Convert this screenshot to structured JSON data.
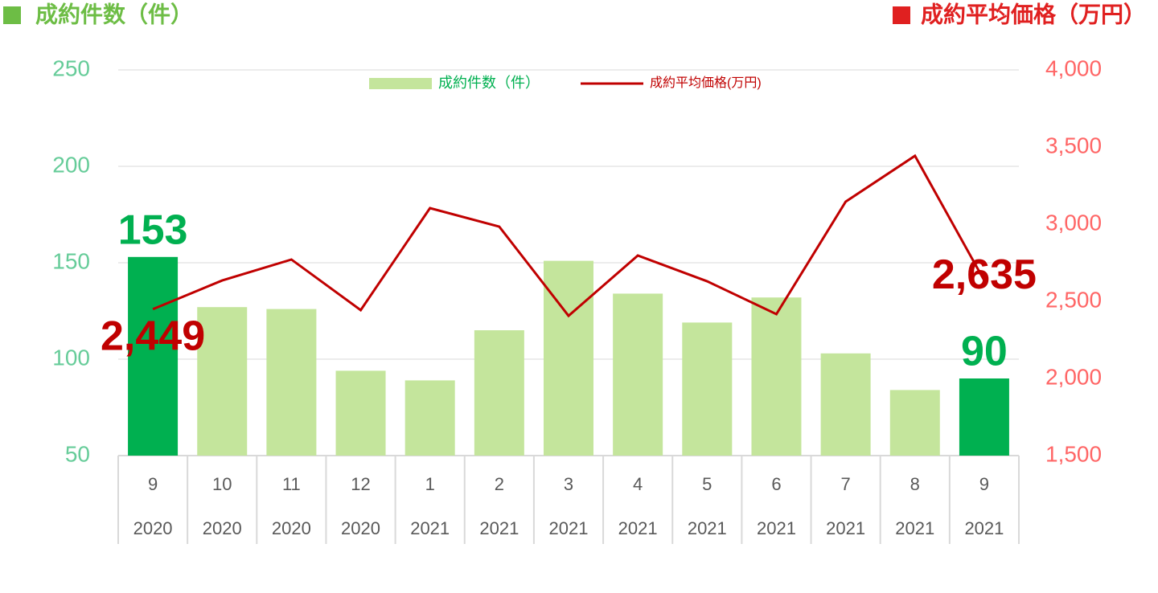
{
  "chart_data": {
    "type": "bar-line",
    "y_label": "成約件数（件）",
    "y2_label": "成約平均価格（万円）",
    "categories": [
      "9",
      "10",
      "11",
      "12",
      "1",
      "2",
      "3",
      "4",
      "5",
      "6",
      "7",
      "8",
      "9"
    ],
    "category_groups": [
      "2020",
      "2020",
      "2020",
      "2020",
      "2021",
      "2021",
      "2021",
      "2021",
      "2021",
      "2021",
      "2021",
      "2021",
      "2021"
    ],
    "series": [
      {
        "name": "成約件数（件）",
        "type": "bar",
        "color": "#c4e59c",
        "colors": [
          "#00b050",
          "#c4e59c",
          "#c4e59c",
          "#c4e59c",
          "#c4e59c",
          "#c4e59c",
          "#c4e59c",
          "#c4e59c",
          "#c4e59c",
          "#c4e59c",
          "#c4e59c",
          "#c4e59c",
          "#00b050"
        ],
        "values": [
          153,
          127,
          126,
          94,
          89,
          115,
          151,
          134,
          119,
          132,
          103,
          84,
          90
        ],
        "value_labels": [
          "153",
          null,
          null,
          null,
          null,
          null,
          null,
          null,
          null,
          null,
          null,
          null,
          "90"
        ]
      },
      {
        "name": "成約平均価格(万円)",
        "type": "line",
        "axis": "y2",
        "color": "#c00000",
        "values": [
          2449,
          2635,
          2771,
          2443,
          3104,
          2984,
          2406,
          2797,
          2630,
          2417,
          3146,
          3443,
          2635
        ],
        "value_labels": [
          "2,449",
          null,
          null,
          null,
          null,
          null,
          null,
          null,
          null,
          null,
          null,
          null,
          "2,635"
        ]
      }
    ],
    "ylim": [
      50,
      250
    ],
    "yticks": [
      50,
      100,
      150,
      200,
      250
    ],
    "y2lim": [
      1500,
      4000
    ],
    "y2ticks": [
      {
        "value": 1500,
        "label": "1,500"
      },
      {
        "value": 2000,
        "label": "2,000"
      },
      {
        "value": 2500,
        "label": "2,500"
      },
      {
        "value": 3000,
        "label": "3,000"
      },
      {
        "value": 3500,
        "label": "3,500"
      },
      {
        "value": 4000,
        "label": "4,000"
      }
    ],
    "grid": true
  }
}
